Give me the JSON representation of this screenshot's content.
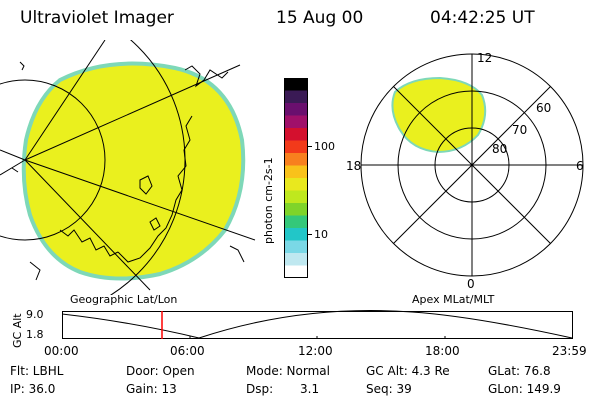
{
  "header": {
    "instrument": "Ultraviolet Imager",
    "date": "15 Aug 00",
    "time": "04:42:25 UT"
  },
  "colorbar": {
    "unit_label": "photon cm-2s-1",
    "ticks": [
      "100",
      "10"
    ],
    "colors": [
      "#000000",
      "#3a1a55",
      "#6a0f6e",
      "#a0106a",
      "#d4102e",
      "#f23a1a",
      "#f8801e",
      "#f9c21a",
      "#e9e81e",
      "#bfe81e",
      "#7fd42a",
      "#34c87a",
      "#22c6c8",
      "#7ad8e6",
      "#bfe8f0",
      "#ffffff"
    ]
  },
  "geo_panel": {
    "label": "Geographic Lat/Lon",
    "fill": "#eaf01e",
    "edge": "#7ed8b8"
  },
  "polar_panel": {
    "label": "Apex MLat/MLT",
    "mlt_labels": [
      "12",
      "18",
      "6",
      "0"
    ],
    "lat_labels": [
      "60",
      "70",
      "80"
    ]
  },
  "altitude_plot": {
    "ylabel": "GC Alt",
    "yticks": [
      "9.0",
      "1.8"
    ],
    "xticks": [
      "00:00",
      "06:00",
      "12:00",
      "18:00",
      "23:59"
    ],
    "marker_color": "#ff0000"
  },
  "info": {
    "flt": "Flt: LBHL",
    "ip": "IP: 36.0",
    "door": "Door: Open",
    "gain": "Gain: 13",
    "mode": "Mode: Normal",
    "dsp_label": "Dsp:",
    "dsp_value": "3.1",
    "gc_alt": "GC Alt: 4.3 Re",
    "seq": "Seq: 39",
    "glat": "GLat: 76.8",
    "glon": "GLon: 149.9"
  }
}
